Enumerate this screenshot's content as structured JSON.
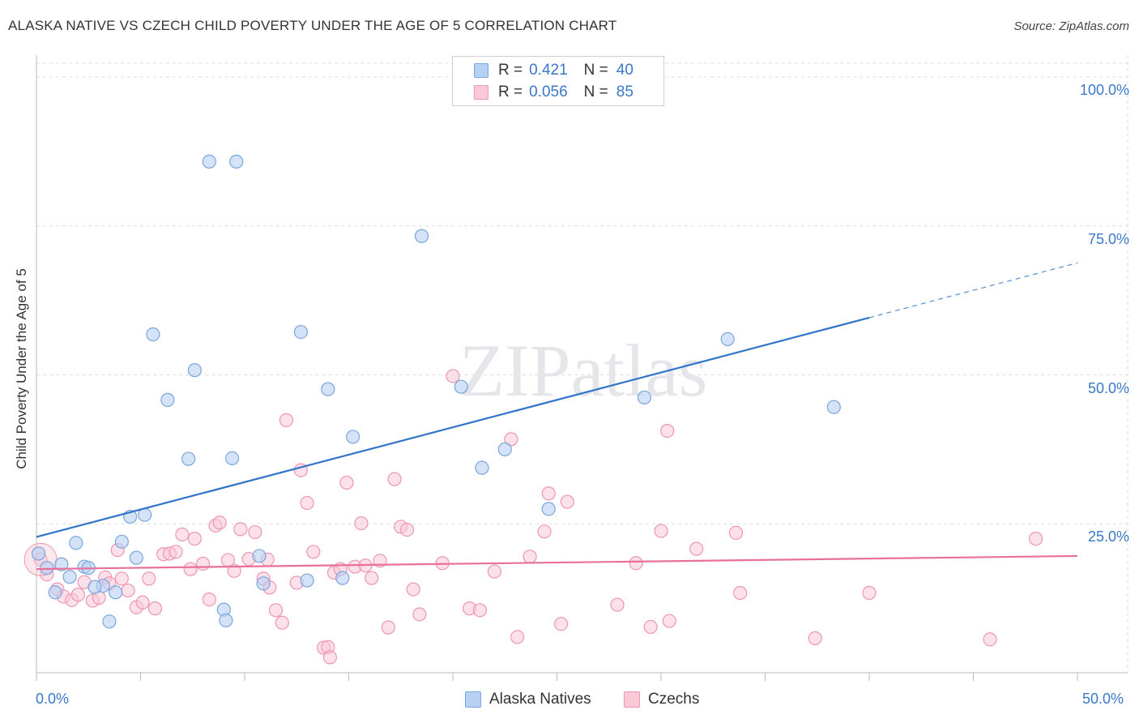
{
  "title": "ALASKA NATIVE VS CZECH CHILD POVERTY UNDER THE AGE OF 5 CORRELATION CHART",
  "source": "Source: ZipAtlas.com",
  "watermark": "ZIPatlas",
  "legend_top": {
    "rows": [
      {
        "r_label": "R =",
        "r_value": "0.421",
        "n_label": "N =",
        "n_value": "40"
      },
      {
        "r_label": "R =",
        "r_value": "0.056",
        "n_label": "N =",
        "n_value": "85"
      }
    ]
  },
  "legend_bottom": {
    "series1": "Alaska Natives",
    "series2": "Czechs"
  },
  "colors": {
    "alaska_fill": "#b7d1f3",
    "alaska_stroke": "#7aa6dc",
    "alaska_line": "#2f74c9",
    "czech_fill": "#f9c9d8",
    "czech_stroke": "#ee96b2",
    "czech_line": "#e8709a",
    "tick_text": "#3a78c8",
    "grid": "#dddddd"
  },
  "chart_data": {
    "type": "scatter",
    "title": "ALASKA NATIVE VS CZECH CHILD POVERTY UNDER THE AGE OF 5 CORRELATION CHART",
    "xlabel": "",
    "ylabel": "Child Poverty Under the Age of 5",
    "xlim": [
      0,
      50
    ],
    "ylim": [
      0,
      100
    ],
    "x_ticks": [
      "0.0%",
      "50.0%"
    ],
    "y_ticks": [
      "25.0%",
      "50.0%",
      "75.0%",
      "100.0%"
    ],
    "y_tick_values": [
      25,
      50,
      75,
      100
    ],
    "series": [
      {
        "name": "Alaska Natives",
        "r": 0.421,
        "n": 40,
        "trend": {
          "x0": 0,
          "y0": 22.8,
          "x1": 40,
          "y1": 59.6,
          "dash_to_x": 50,
          "dash_to_y": 68.8
        },
        "points": [
          [
            8.3,
            85.8
          ],
          [
            9.6,
            85.8
          ],
          [
            18.5,
            73.3
          ],
          [
            5.6,
            56.8
          ],
          [
            12.7,
            57.2
          ],
          [
            33.2,
            56.0
          ],
          [
            7.6,
            50.8
          ],
          [
            6.3,
            45.8
          ],
          [
            14.0,
            47.6
          ],
          [
            20.4,
            48.0
          ],
          [
            29.2,
            46.2
          ],
          [
            38.3,
            44.6
          ],
          [
            15.2,
            39.6
          ],
          [
            7.3,
            35.9
          ],
          [
            9.4,
            36.0
          ],
          [
            21.4,
            34.4
          ],
          [
            22.5,
            37.5
          ],
          [
            5.2,
            26.5
          ],
          [
            4.5,
            26.2
          ],
          [
            24.6,
            27.5
          ],
          [
            1.9,
            21.8
          ],
          [
            4.1,
            22.0
          ],
          [
            4.8,
            19.3
          ],
          [
            10.7,
            19.6
          ],
          [
            0.1,
            20.0
          ],
          [
            1.2,
            18.2
          ],
          [
            0.5,
            17.6
          ],
          [
            2.3,
            17.8
          ],
          [
            2.5,
            17.6
          ],
          [
            1.6,
            16.1
          ],
          [
            3.2,
            14.6
          ],
          [
            2.8,
            14.4
          ],
          [
            3.8,
            13.5
          ],
          [
            0.9,
            13.5
          ],
          [
            10.9,
            15.0
          ],
          [
            13.0,
            15.5
          ],
          [
            14.7,
            15.9
          ],
          [
            9.0,
            10.6
          ],
          [
            9.1,
            8.8
          ],
          [
            3.5,
            8.6
          ]
        ]
      },
      {
        "name": "Czechs",
        "r": 0.056,
        "n": 85,
        "trend": {
          "x0": 0,
          "y0": 17.4,
          "x1": 50,
          "y1": 19.6
        },
        "points": [
          [
            0.2,
            19.0
          ],
          [
            0.5,
            16.5
          ],
          [
            1.0,
            14.0
          ],
          [
            1.3,
            12.8
          ],
          [
            1.7,
            12.2
          ],
          [
            2.0,
            13.1
          ],
          [
            2.3,
            15.2
          ],
          [
            2.7,
            12.1
          ],
          [
            3.0,
            12.6
          ],
          [
            3.3,
            16.0
          ],
          [
            3.5,
            15.0
          ],
          [
            3.9,
            20.6
          ],
          [
            4.1,
            15.8
          ],
          [
            4.4,
            13.8
          ],
          [
            4.8,
            11.0
          ],
          [
            5.1,
            11.8
          ],
          [
            5.4,
            15.8
          ],
          [
            5.7,
            10.8
          ],
          [
            6.1,
            19.9
          ],
          [
            6.4,
            20.0
          ],
          [
            6.7,
            20.3
          ],
          [
            7.0,
            23.2
          ],
          [
            7.4,
            17.4
          ],
          [
            7.6,
            22.5
          ],
          [
            8.0,
            18.3
          ],
          [
            8.3,
            12.3
          ],
          [
            8.6,
            24.7
          ],
          [
            8.8,
            25.2
          ],
          [
            9.2,
            18.9
          ],
          [
            9.5,
            17.1
          ],
          [
            9.8,
            24.1
          ],
          [
            10.2,
            19.1
          ],
          [
            10.5,
            23.6
          ],
          [
            10.9,
            15.8
          ],
          [
            11.2,
            14.3
          ],
          [
            11.5,
            10.5
          ],
          [
            11.8,
            8.4
          ],
          [
            12.0,
            42.4
          ],
          [
            12.5,
            15.1
          ],
          [
            12.7,
            34.0
          ],
          [
            13.0,
            28.5
          ],
          [
            13.3,
            20.3
          ],
          [
            13.8,
            4.2
          ],
          [
            14.0,
            4.3
          ],
          [
            14.1,
            2.6
          ],
          [
            14.3,
            16.8
          ],
          [
            14.6,
            17.4
          ],
          [
            14.9,
            31.9
          ],
          [
            15.3,
            17.8
          ],
          [
            15.6,
            25.1
          ],
          [
            15.8,
            18.0
          ],
          [
            16.1,
            15.9
          ],
          [
            16.5,
            18.8
          ],
          [
            16.9,
            7.6
          ],
          [
            17.2,
            32.5
          ],
          [
            17.5,
            24.5
          ],
          [
            17.8,
            24.0
          ],
          [
            18.1,
            14.0
          ],
          [
            18.4,
            9.8
          ],
          [
            19.5,
            18.4
          ],
          [
            20.0,
            49.8
          ],
          [
            20.8,
            10.8
          ],
          [
            21.3,
            10.5
          ],
          [
            22.0,
            17.0
          ],
          [
            22.8,
            39.2
          ],
          [
            23.1,
            6.0
          ],
          [
            23.7,
            19.5
          ],
          [
            24.4,
            23.7
          ],
          [
            24.6,
            30.1
          ],
          [
            25.2,
            8.2
          ],
          [
            25.5,
            28.7
          ],
          [
            27.9,
            11.4
          ],
          [
            28.8,
            18.4
          ],
          [
            29.5,
            7.7
          ],
          [
            30.0,
            23.8
          ],
          [
            30.3,
            40.6
          ],
          [
            30.4,
            8.7
          ],
          [
            31.7,
            20.8
          ],
          [
            33.6,
            23.5
          ],
          [
            33.8,
            13.4
          ],
          [
            37.4,
            5.8
          ],
          [
            40.0,
            13.4
          ],
          [
            45.8,
            5.6
          ],
          [
            48.0,
            22.5
          ],
          [
            11.1,
            19.0
          ]
        ]
      }
    ]
  }
}
